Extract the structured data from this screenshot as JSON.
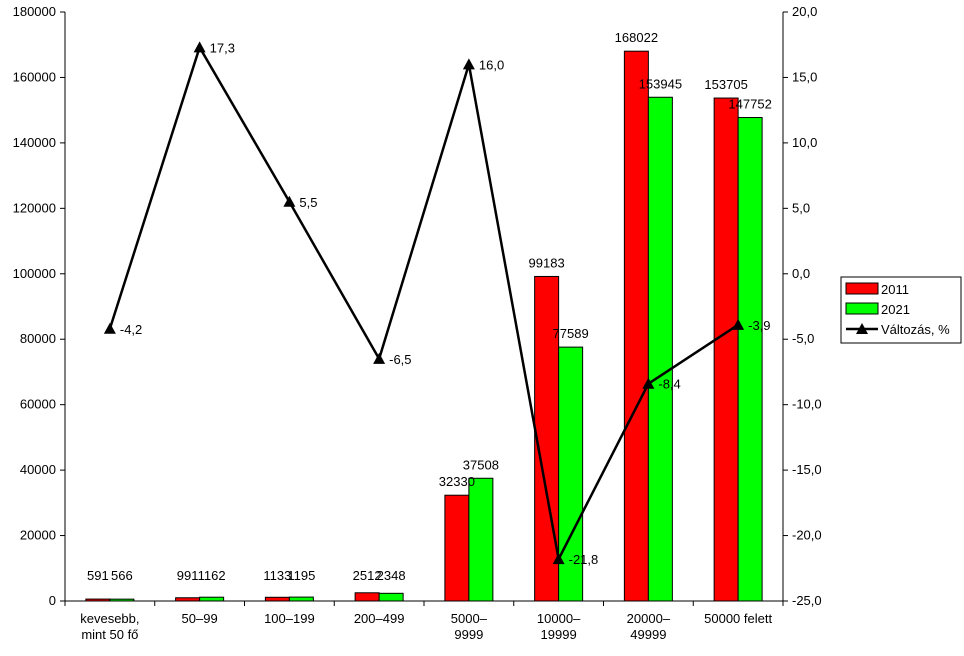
{
  "chart_data": {
    "type": "bar",
    "categories": [
      [
        "kevesebb,",
        "mint 50 fő"
      ],
      [
        "50–99"
      ],
      [
        "100–199"
      ],
      [
        "200–499"
      ],
      [
        "5000–",
        "9999"
      ],
      [
        "10000–",
        "19999"
      ],
      [
        "20000–",
        "49999"
      ],
      [
        "50000 felett"
      ]
    ],
    "series": [
      {
        "name": "2011",
        "kind": "bar",
        "axis": "left",
        "color": "#ff0000",
        "values": [
          591,
          991,
          1133,
          2512,
          32330,
          99183,
          168022,
          153705
        ],
        "labels": [
          "591",
          "991",
          "1133",
          "2512",
          "32330",
          "99183",
          "168022",
          "153705"
        ]
      },
      {
        "name": "2021",
        "kind": "bar",
        "axis": "left",
        "color": "#00ff00",
        "values": [
          566,
          1162,
          1195,
          2348,
          37508,
          77589,
          153945,
          147752
        ],
        "labels": [
          "566",
          "1162",
          "1195",
          "2348",
          "37508",
          "77589",
          "153945",
          "147752"
        ]
      },
      {
        "name": "Változás, %",
        "kind": "line",
        "axis": "right",
        "color": "#000000",
        "marker": "triangle",
        "values": [
          -4.2,
          17.3,
          5.5,
          -6.5,
          16.0,
          -21.8,
          -8.4,
          -3.9
        ],
        "labels": [
          "-4,2",
          "17,3",
          "5,5",
          "-6,5",
          "16,0",
          "-21,8",
          "-8,4",
          "-3,9"
        ]
      }
    ],
    "y_left": {
      "range": [
        0,
        180000
      ],
      "ticks": [
        0,
        20000,
        40000,
        60000,
        80000,
        100000,
        120000,
        140000,
        160000,
        180000
      ],
      "tick_labels": [
        "0",
        "20000",
        "40000",
        "60000",
        "80000",
        "100000",
        "120000",
        "140000",
        "160000",
        "180000"
      ]
    },
    "y_right": {
      "range": [
        -25,
        20
      ],
      "ticks": [
        -25,
        -20,
        -15,
        -10,
        -5,
        0,
        5,
        10,
        15,
        20
      ],
      "tick_labels": [
        "-25,0",
        "-20,0",
        "-15,0",
        "-10,0",
        "-5,0",
        "0,0",
        "5,0",
        "10,0",
        "15,0",
        "20,0"
      ]
    },
    "grid": false,
    "legend": {
      "position": "right"
    }
  }
}
